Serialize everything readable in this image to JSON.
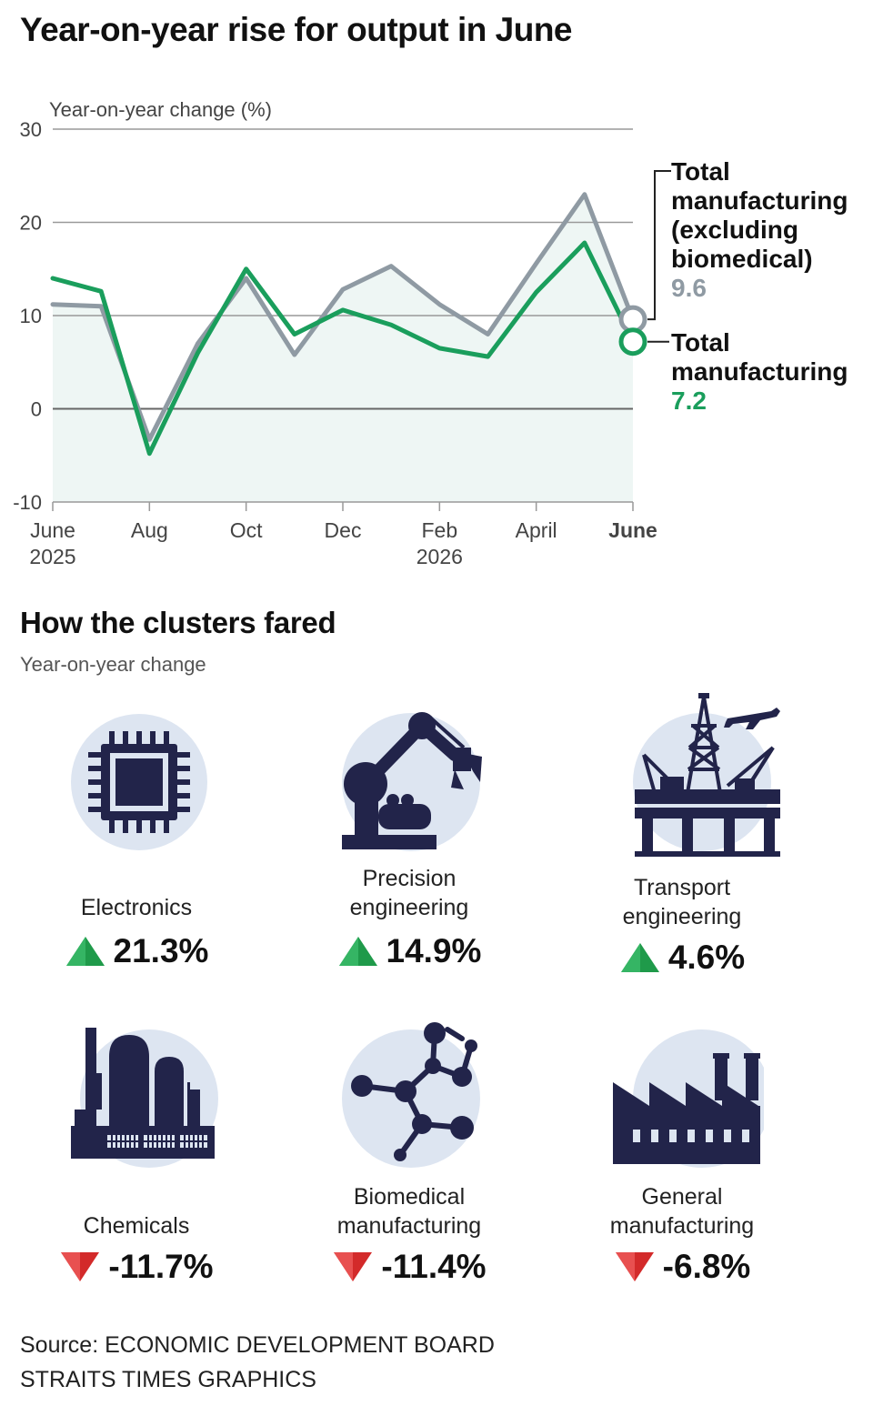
{
  "title": "Year-on-year rise for output in June",
  "chart_data": {
    "type": "line",
    "ylabel": "Year-on-year change (%)",
    "ylim": [
      -10,
      30
    ],
    "yticks": [
      30,
      20,
      10,
      0,
      -10
    ],
    "x": [
      "June 2025",
      "Jul 2025",
      "Aug 2025",
      "Sep 2025",
      "Oct 2025",
      "Nov 2025",
      "Dec 2025",
      "Jan 2026",
      "Feb 2026",
      "Mar 2026",
      "April 2026",
      "May 2026",
      "June 2026"
    ],
    "xtick_labels": [
      {
        "index": 0,
        "line1": "June",
        "line2": "2025",
        "bold": false
      },
      {
        "index": 2,
        "line1": "Aug",
        "line2": "",
        "bold": false
      },
      {
        "index": 4,
        "line1": "Oct",
        "line2": "",
        "bold": false
      },
      {
        "index": 6,
        "line1": "Dec",
        "line2": "",
        "bold": false
      },
      {
        "index": 8,
        "line1": "Feb",
        "line2": "2026",
        "bold": false
      },
      {
        "index": 10,
        "line1": "April",
        "line2": "",
        "bold": false
      },
      {
        "index": 12,
        "line1": "June",
        "line2": "",
        "bold": true
      }
    ],
    "series": [
      {
        "name": "Total manufacturing (excluding biomedical)",
        "color": "#8f9aa3",
        "label_lines": [
          "Total",
          "manufacturing",
          "(excluding",
          "biomedical)"
        ],
        "latest": "9.6",
        "values": [
          11.2,
          11.0,
          -3.3,
          7.0,
          14.0,
          5.8,
          12.8,
          15.3,
          11.2,
          8.0,
          15.6,
          23.0,
          9.6
        ]
      },
      {
        "name": "Total manufacturing",
        "color": "#1a9e5c",
        "label_lines": [
          "Total",
          "manufacturing"
        ],
        "latest": "7.2",
        "values": [
          14.0,
          12.6,
          -4.8,
          6.0,
          15.0,
          8.0,
          10.6,
          9.0,
          6.5,
          5.6,
          12.5,
          17.8,
          7.2
        ]
      }
    ],
    "grid": true,
    "legend": "right"
  },
  "clusters": {
    "title": "How the clusters fared",
    "subtitle": "Year-on-year change",
    "items": [
      {
        "id": "electronics",
        "name_lines": [
          "Electronics"
        ],
        "value": "21.3%",
        "direction": "up",
        "icon": "microchip-icon"
      },
      {
        "id": "precision",
        "name_lines": [
          "Precision",
          "engineering"
        ],
        "value": "14.9%",
        "direction": "up",
        "icon": "robot-arm-icon"
      },
      {
        "id": "transport",
        "name_lines": [
          "Transport",
          "engineering"
        ],
        "value": "4.6%",
        "direction": "up",
        "icon": "oil-rig-airplane-icon"
      },
      {
        "id": "chemicals",
        "name_lines": [
          "Chemicals"
        ],
        "value": "-11.7%",
        "direction": "down",
        "icon": "chemical-plant-icon"
      },
      {
        "id": "biomedical",
        "name_lines": [
          "Biomedical",
          "manufacturing"
        ],
        "value": "-11.4%",
        "direction": "down",
        "icon": "molecule-icon"
      },
      {
        "id": "general",
        "name_lines": [
          "General",
          "manufacturing"
        ],
        "value": "-6.8%",
        "direction": "down",
        "icon": "factory-icon"
      }
    ]
  },
  "source": {
    "line1": "Source: ECONOMIC DEVELOPMENT BOARD",
    "line2": "STRAITS TIMES GRAPHICS"
  },
  "colors": {
    "up": "#1f9a4a",
    "down": "#d32a2a",
    "icon_dark": "#22244a",
    "icon_circle": "#dde5f1",
    "area_fill": "#eef6f4"
  }
}
